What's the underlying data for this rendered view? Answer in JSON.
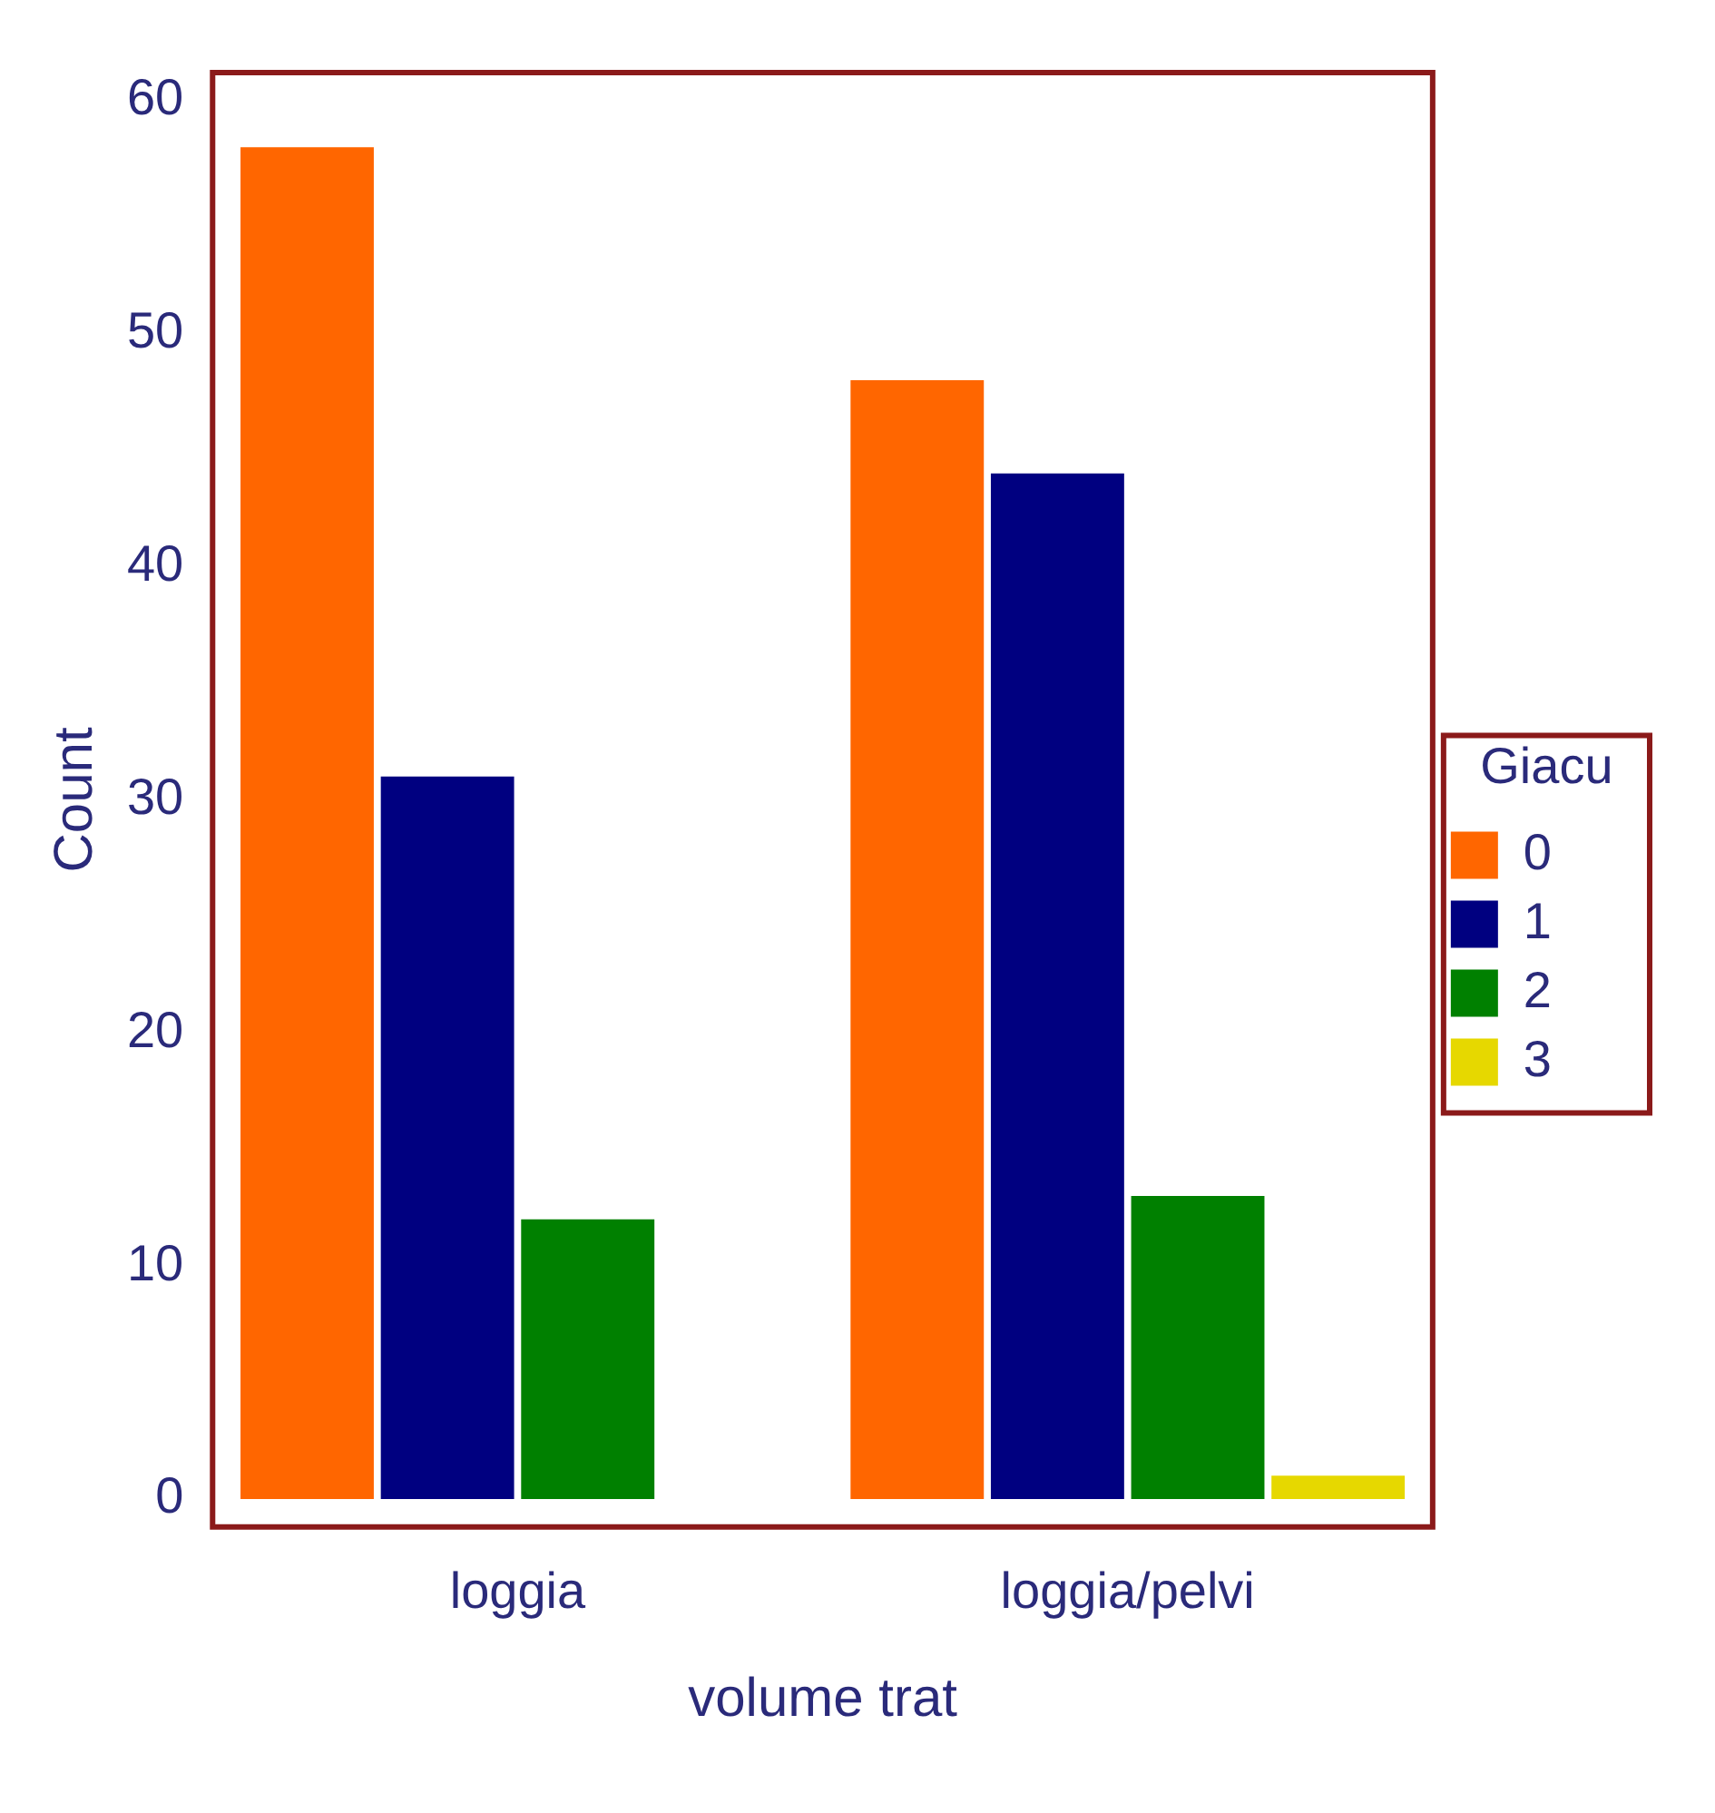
{
  "chart_data": {
    "type": "bar",
    "xlabel": "volume trat",
    "ylabel": "Count",
    "legend_title": "Giacu",
    "categories": [
      "loggia",
      "loggia/pelvi"
    ],
    "series": [
      {
        "name": "0",
        "color": "#ff6600",
        "values": [
          58,
          48
        ]
      },
      {
        "name": "1",
        "color": "#000080",
        "values": [
          31,
          44
        ]
      },
      {
        "name": "2",
        "color": "#008000",
        "values": [
          12,
          13
        ]
      },
      {
        "name": "3",
        "color": "#e6d800",
        "values": [
          null,
          1
        ]
      }
    ],
    "ylim": [
      -1.2,
      61.2
    ],
    "yticks": [
      0,
      10,
      20,
      30,
      40,
      50,
      60
    ],
    "grid": false,
    "legend": "right"
  }
}
